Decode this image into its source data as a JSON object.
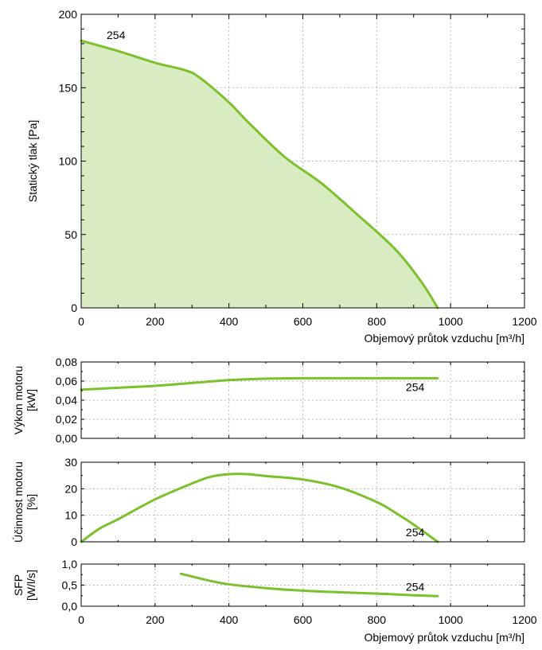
{
  "colors": {
    "curve": "#7cc02c",
    "fill": "#d9ecc1",
    "grid": "#b8b8b8",
    "axis": "#000000"
  },
  "chart_data": [
    {
      "id": "pressure",
      "type": "area",
      "xlabel": "Objemový průtok vzduchu [m³/h]",
      "ylabel": "Statický tlak [Pa]",
      "xlim": [
        0,
        1200
      ],
      "ylim": [
        0,
        200
      ],
      "x_ticks": [
        "0",
        "200",
        "400",
        "600",
        "800",
        "1000",
        "1200"
      ],
      "y_ticks": [
        "0",
        "50",
        "100",
        "150",
        "200"
      ],
      "grid": true,
      "series": [
        {
          "name": "254",
          "x": [
            0,
            100,
            200,
            280,
            320,
            400,
            450,
            550,
            650,
            750,
            850,
            920,
            965
          ],
          "y": [
            182,
            175,
            167,
            162,
            157,
            140,
            127,
            103,
            85,
            63,
            40,
            18,
            0
          ]
        }
      ]
    },
    {
      "id": "power",
      "type": "line",
      "ylabel": "Výkon motoru [kW]",
      "xlim": [
        0,
        1200
      ],
      "ylim": [
        0,
        0.08
      ],
      "y_ticks": [
        "0,00",
        "0,02",
        "0,04",
        "0,06",
        "0,08"
      ],
      "grid": true,
      "series": [
        {
          "name": "254",
          "x": [
            0,
            100,
            200,
            300,
            400,
            500,
            600,
            700,
            800,
            900,
            965
          ],
          "y": [
            0.051,
            0.053,
            0.055,
            0.058,
            0.061,
            0.0625,
            0.063,
            0.063,
            0.063,
            0.063,
            0.063
          ]
        }
      ]
    },
    {
      "id": "efficiency",
      "type": "line",
      "ylabel": "Účinnost motoru [%]",
      "xlim": [
        0,
        1200
      ],
      "ylim": [
        0,
        30
      ],
      "y_ticks": [
        "0",
        "10",
        "20",
        "30"
      ],
      "grid": true,
      "series": [
        {
          "name": "254",
          "x": [
            0,
            50,
            100,
            200,
            300,
            350,
            400,
            450,
            500,
            600,
            700,
            800,
            850,
            900,
            965
          ],
          "y": [
            0,
            5,
            8.5,
            16,
            22,
            24.5,
            25.5,
            25.5,
            24.8,
            23.5,
            20.5,
            15,
            11,
            6.5,
            0
          ]
        }
      ]
    },
    {
      "id": "sfp",
      "type": "line",
      "xlabel": "Objemový průtok vzduchu [m³/h]",
      "ylabel": "SFP [W/l/s]",
      "xlim": [
        0,
        1200
      ],
      "ylim": [
        0,
        1.0
      ],
      "x_ticks": [
        "0",
        "200",
        "400",
        "600",
        "800",
        "1000",
        "1200"
      ],
      "y_ticks": [
        "0,0",
        "0,5",
        "1,0"
      ],
      "grid": true,
      "series": [
        {
          "name": "254",
          "x": [
            270,
            350,
            400,
            500,
            600,
            700,
            800,
            900,
            965
          ],
          "y": [
            0.77,
            0.6,
            0.52,
            0.43,
            0.37,
            0.33,
            0.3,
            0.26,
            0.24
          ]
        }
      ]
    }
  ]
}
